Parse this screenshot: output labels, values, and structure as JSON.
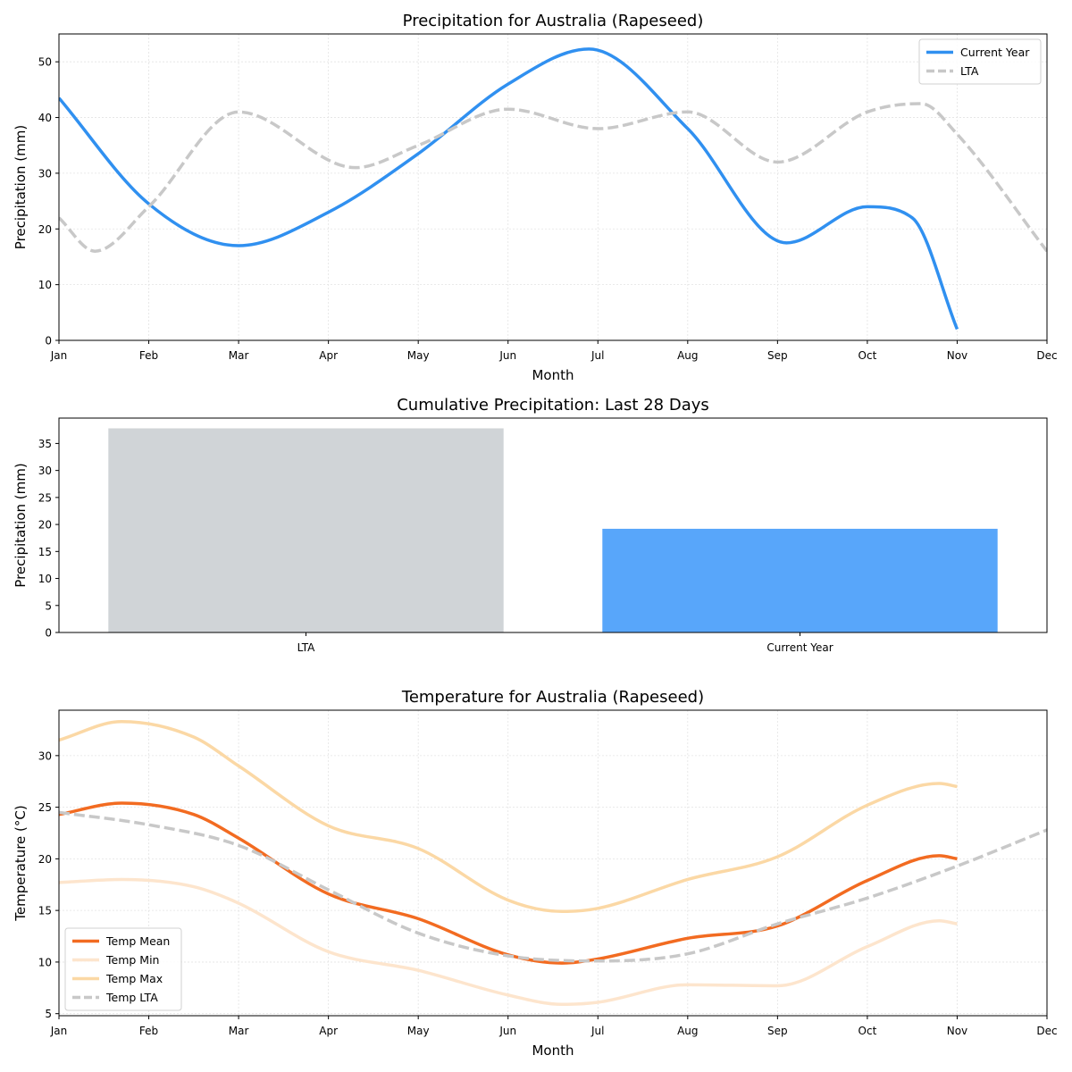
{
  "chart_data": [
    {
      "type": "line",
      "title": "Precipitation for Australia (Rapeseed)",
      "xlabel": "Month",
      "ylabel": "Precipitation (mm)",
      "categories": [
        "Jan",
        "Feb",
        "Mar",
        "Apr",
        "May",
        "Jun",
        "Jul",
        "Aug",
        "Sep",
        "Oct",
        "Nov",
        "Dec"
      ],
      "xlim": [
        0,
        11
      ],
      "ylim": [
        0,
        55
      ],
      "yticks": [
        0,
        10,
        20,
        30,
        40,
        50
      ],
      "grid": true,
      "legend_position": "top-right",
      "series": [
        {
          "name": "Current Year",
          "color": "#3090f0",
          "dash": "solid",
          "x": [
            0,
            1,
            2,
            3,
            4,
            5,
            5.9,
            7,
            8.1,
            9,
            9.5,
            10
          ],
          "y": [
            43.5,
            24.5,
            17,
            23,
            33.5,
            46,
            52.3,
            38,
            17.5,
            24,
            22,
            2
          ]
        },
        {
          "name": "LTA",
          "color": "#c8c8c8",
          "dash": "dashed",
          "x": [
            0,
            0.4,
            1,
            2,
            3.3,
            4,
            5,
            6,
            7,
            8,
            9,
            9.6,
            10,
            11
          ],
          "y": [
            22,
            16,
            24,
            41,
            31,
            35,
            41.5,
            38,
            41,
            32,
            41,
            42.5,
            37,
            16
          ]
        }
      ]
    },
    {
      "type": "bar",
      "title": "Cumulative Precipitation: Last 28 Days",
      "xlabel": "",
      "ylabel": "Precipitation (mm)",
      "categories": [
        "LTA",
        "Current Year"
      ],
      "values": [
        37.8,
        19.2
      ],
      "colors": [
        "#d0d4d7",
        "#58a6fa"
      ],
      "ylim": [
        0,
        39.7
      ],
      "yticks": [
        0,
        5,
        10,
        15,
        20,
        25,
        30,
        35
      ],
      "grid": false
    },
    {
      "type": "line",
      "title": "Temperature for Australia (Rapeseed)",
      "xlabel": "Month",
      "ylabel": "Temperature (°C)",
      "categories": [
        "Jan",
        "Feb",
        "Mar",
        "Apr",
        "May",
        "Jun",
        "Jul",
        "Aug",
        "Sep",
        "Oct",
        "Nov",
        "Dec"
      ],
      "xlim": [
        0,
        11
      ],
      "ylim": [
        4.8,
        34.4
      ],
      "yticks": [
        5,
        10,
        15,
        20,
        25,
        30
      ],
      "grid": true,
      "legend_position": "bottom-left",
      "series": [
        {
          "name": "Temp Mean",
          "color": "#f26b21",
          "dash": "solid",
          "width": 3.5,
          "x": [
            0,
            0.7,
            1.5,
            2,
            3,
            4,
            5,
            5.6,
            6,
            7,
            8,
            9,
            9.8,
            10
          ],
          "y": [
            24.3,
            25.4,
            24.3,
            22,
            16.6,
            14.2,
            10.7,
            9.9,
            10.3,
            12.3,
            13.5,
            17.9,
            20.3,
            20
          ]
        },
        {
          "name": "Temp Min",
          "color": "#fde5cd",
          "dash": "solid",
          "width": 3.5,
          "x": [
            0,
            0.7,
            1.5,
            2,
            3,
            4,
            5,
            5.6,
            6,
            7,
            8,
            9,
            9.8,
            10
          ],
          "y": [
            17.7,
            18,
            17.3,
            15.7,
            11,
            9.2,
            6.8,
            5.9,
            6.1,
            7.8,
            7.7,
            11.5,
            14,
            13.7
          ]
        },
        {
          "name": "Temp Max",
          "color": "#fbd8a5",
          "dash": "solid",
          "width": 3.5,
          "x": [
            0,
            0.7,
            1.5,
            2,
            3,
            4,
            5,
            5.6,
            6,
            7,
            8,
            9,
            9.8,
            10
          ],
          "y": [
            31.5,
            33.3,
            31.8,
            29,
            23.2,
            21,
            16,
            14.9,
            15.2,
            18,
            20.2,
            25.2,
            27.3,
            27
          ]
        },
        {
          "name": "Temp LTA",
          "color": "#c8c8c8",
          "dash": "dashed",
          "width": 3.5,
          "x": [
            0,
            1,
            2,
            3,
            4,
            5,
            6,
            7,
            8,
            9,
            10,
            11
          ],
          "y": [
            24.5,
            23.3,
            21.3,
            17,
            12.8,
            10.6,
            10.1,
            10.8,
            13.7,
            16.2,
            19.3,
            22.8
          ]
        }
      ]
    }
  ]
}
